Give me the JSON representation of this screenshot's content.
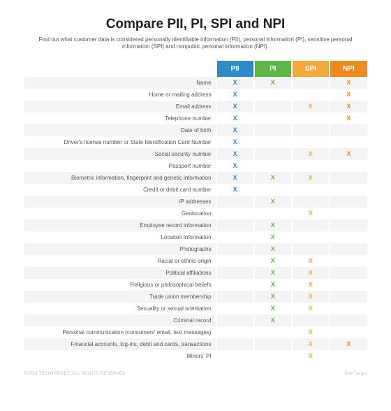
{
  "title": "Compare PII, PI, SPI and NPI",
  "title_fontsize": 19,
  "subtitle": "Find out what customer data is considered personally identifiable information (PII), personal information (PI), sensitive personal information (SPI) and nonpublic personal information (NPI).",
  "subtitle_fontsize": 8,
  "row_label_fontsize": 8,
  "header_fontsize": 10,
  "mark_fontsize": 9,
  "mark_glyph": "X",
  "row_colors": {
    "even": "#f4f4f4",
    "odd": "#ffffff"
  },
  "columns": [
    {
      "key": "pii",
      "label": "PII",
      "header_bg": "#2f8acb",
      "header_fg": "#ffffff",
      "mark_color": "#2f8acb"
    },
    {
      "key": "pi",
      "label": "PI",
      "header_bg": "#5fb548",
      "header_fg": "#ffffff",
      "mark_color": "#5fb548"
    },
    {
      "key": "spi",
      "label": "SPI",
      "header_bg": "#f4a93c",
      "header_fg": "#ffffff",
      "mark_color": "#f4a93c"
    },
    {
      "key": "npi",
      "label": "NPI",
      "header_bg": "#f08a1d",
      "header_fg": "#ffffff",
      "mark_color": "#f08a1d"
    }
  ],
  "rows": [
    {
      "label": "Name",
      "marks": [
        "pii",
        "pi",
        "npi"
      ]
    },
    {
      "label": "Home or mailing address",
      "marks": [
        "pii",
        "npi"
      ]
    },
    {
      "label": "Email address",
      "marks": [
        "pii",
        "spi",
        "npi"
      ]
    },
    {
      "label": "Telephone number",
      "marks": [
        "pii",
        "npi"
      ]
    },
    {
      "label": "Date of birth",
      "marks": [
        "pii"
      ]
    },
    {
      "label": "Driver's license number or State Identification Card Number",
      "marks": [
        "pii"
      ]
    },
    {
      "label": "Social security number",
      "marks": [
        "pii",
        "spi",
        "npi"
      ]
    },
    {
      "label": "Passport number",
      "marks": [
        "pii"
      ]
    },
    {
      "label": "Biometric information, fingerprint and genetic information",
      "marks": [
        "pii",
        "pi",
        "spi"
      ]
    },
    {
      "label": "Credit or debit card number",
      "marks": [
        "pii"
      ]
    },
    {
      "label": "IP addresses",
      "marks": [
        "pi"
      ]
    },
    {
      "label": "Geolocation",
      "marks": [
        "spi"
      ]
    },
    {
      "label": "Employee record information",
      "marks": [
        "pi"
      ]
    },
    {
      "label": "Location information",
      "marks": [
        "pi"
      ]
    },
    {
      "label": "Photographs",
      "marks": [
        "pi"
      ]
    },
    {
      "label": "Racial or ethnic origin",
      "marks": [
        "pi",
        "spi"
      ]
    },
    {
      "label": "Political affiliations",
      "marks": [
        "pi",
        "spi"
      ]
    },
    {
      "label": "Religious or philosophical beliefs",
      "marks": [
        "pi",
        "spi"
      ]
    },
    {
      "label": "Trade union membership",
      "marks": [
        "pi",
        "spi"
      ]
    },
    {
      "label": "Sexuality or sexual orientation",
      "marks": [
        "pi",
        "spi"
      ]
    },
    {
      "label": "Criminal record",
      "marks": [
        "pi"
      ]
    },
    {
      "label": "Personal communication (consumers' email, text messages)",
      "marks": [
        "spi"
      ]
    },
    {
      "label": "Financial accounts, log-ins, debit and cards, transactions",
      "marks": [
        "spi",
        "npi"
      ]
    },
    {
      "label": "Minors' PI",
      "marks": [
        "spi"
      ]
    }
  ],
  "footer": {
    "left": "©2023 TECHTARGET. ALL RIGHTS RESERVED",
    "right": "TechTarget"
  }
}
